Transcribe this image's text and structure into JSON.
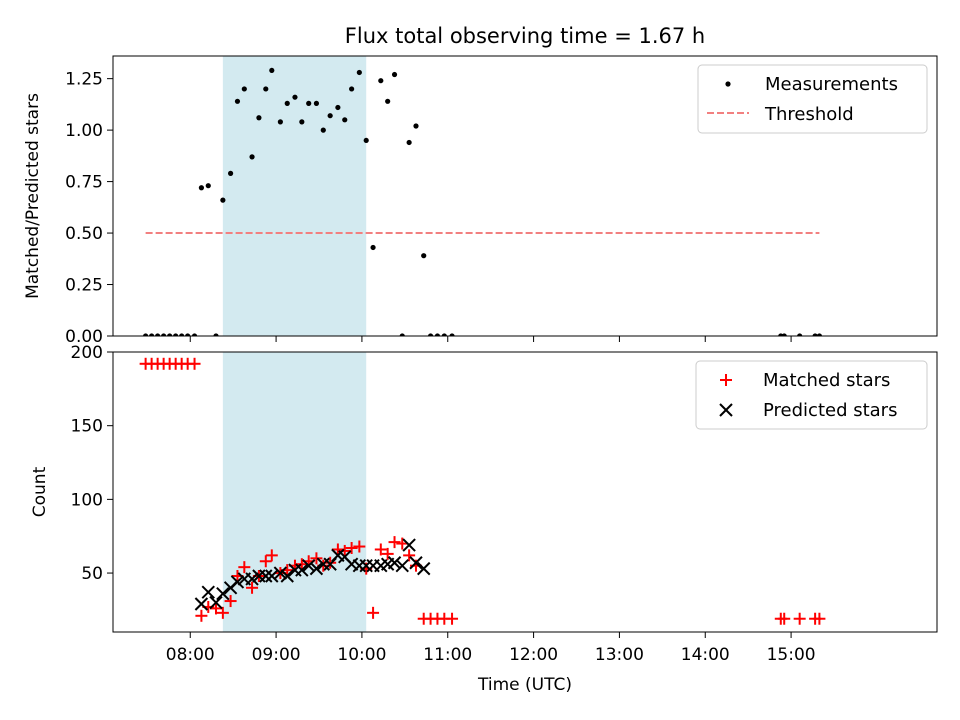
{
  "chart_data": [
    {
      "type": "scatter",
      "title": "Flux total observing time = 1.67 h",
      "xlabel": "",
      "ylabel": "Matched/Predicted stars",
      "x_unit": "hours (UTC)",
      "xlim": [
        7.1,
        16.7
      ],
      "ylim": [
        0,
        1.36
      ],
      "yticks": [
        0.0,
        0.25,
        0.5,
        0.75,
        1.0,
        1.25
      ],
      "ytick_labels": [
        "0.00",
        "0.25",
        "0.50",
        "0.75",
        "1.00",
        "1.25"
      ],
      "highlight_span": {
        "from": 8.38,
        "to": 10.05,
        "color": "#d3eaf0"
      },
      "legend": {
        "position": "top-right",
        "entries": [
          "Measurements",
          "Threshold"
        ]
      },
      "series": [
        {
          "name": "Measurements",
          "kind": "points",
          "color": "#000000",
          "x": [
            7.48,
            7.55,
            7.62,
            7.69,
            7.76,
            7.83,
            7.9,
            7.97,
            8.05,
            8.13,
            8.21,
            8.3,
            8.38,
            8.47,
            8.55,
            8.63,
            8.72,
            8.8,
            8.88,
            8.95,
            9.05,
            9.13,
            9.22,
            9.3,
            9.38,
            9.47,
            9.55,
            9.63,
            9.72,
            9.8,
            9.88,
            9.97,
            10.05,
            10.13,
            10.22,
            10.3,
            10.38,
            10.47,
            10.55,
            10.63,
            10.72,
            10.8,
            10.88,
            10.96,
            11.05,
            14.88,
            14.92,
            15.1,
            15.28,
            15.33
          ],
          "y": [
            0,
            0,
            0,
            0,
            0,
            0,
            0,
            0,
            0,
            0.72,
            0.73,
            0,
            0.66,
            0.79,
            1.14,
            1.2,
            0.87,
            1.06,
            1.2,
            1.29,
            1.04,
            1.13,
            1.16,
            1.04,
            1.13,
            1.13,
            1.0,
            1.07,
            1.11,
            1.05,
            1.2,
            1.28,
            0.95,
            0.43,
            1.24,
            1.14,
            1.27,
            0,
            0.94,
            1.02,
            0.39,
            0,
            0,
            0,
            0,
            0,
            0,
            0,
            0,
            0
          ]
        },
        {
          "name": "Threshold",
          "kind": "dashed-line",
          "color": "#f28080",
          "x": [
            7.48,
            15.33
          ],
          "y": [
            0.5,
            0.5
          ]
        }
      ]
    },
    {
      "type": "scatter",
      "title": "",
      "xlabel": "Time (UTC)",
      "ylabel": "Count",
      "x_unit": "hours (UTC)",
      "xlim": [
        7.1,
        16.7
      ],
      "ylim": [
        10,
        200
      ],
      "yticks": [
        50,
        100,
        150,
        200
      ],
      "ytick_labels": [
        "50",
        "100",
        "150",
        "200"
      ],
      "xticks": [
        8,
        9,
        10,
        11,
        12,
        13,
        14,
        15
      ],
      "xtick_labels": [
        "08:00",
        "09:00",
        "10:00",
        "11:00",
        "12:00",
        "13:00",
        "14:00",
        "15:00"
      ],
      "highlight_span": {
        "from": 8.38,
        "to": 10.05,
        "color": "#d3eaf0"
      },
      "legend": {
        "position": "top-right",
        "entries": [
          "Matched stars",
          "Predicted stars"
        ]
      },
      "series": [
        {
          "name": "Matched stars",
          "kind": "plus",
          "color": "#ff0000",
          "x": [
            7.48,
            7.55,
            7.62,
            7.69,
            7.76,
            7.83,
            7.9,
            7.97,
            8.05,
            8.13,
            8.21,
            8.3,
            8.38,
            8.47,
            8.55,
            8.63,
            8.72,
            8.8,
            8.88,
            8.95,
            9.05,
            9.13,
            9.22,
            9.3,
            9.38,
            9.47,
            9.55,
            9.63,
            9.72,
            9.8,
            9.88,
            9.97,
            10.05,
            10.13,
            10.22,
            10.3,
            10.38,
            10.47,
            10.55,
            10.63,
            10.72,
            10.8,
            10.88,
            10.96,
            11.05,
            14.88,
            14.92,
            15.1,
            15.28,
            15.33
          ],
          "y": [
            192,
            192,
            192,
            192,
            192,
            192,
            192,
            192,
            192,
            21,
            27,
            26,
            23,
            31,
            48,
            54,
            40,
            48,
            58,
            62,
            50,
            52,
            55,
            56,
            58,
            60,
            55,
            57,
            66,
            65,
            67,
            68,
            53,
            23,
            66,
            63,
            71,
            70,
            62,
            55,
            19,
            19,
            19,
            19,
            19,
            19,
            19,
            19,
            19,
            19
          ]
        },
        {
          "name": "Predicted stars",
          "kind": "cross",
          "color": "#000000",
          "x": [
            8.13,
            8.21,
            8.3,
            8.38,
            8.47,
            8.55,
            8.63,
            8.72,
            8.8,
            8.88,
            8.95,
            9.05,
            9.13,
            9.22,
            9.3,
            9.38,
            9.47,
            9.55,
            9.63,
            9.72,
            9.8,
            9.88,
            9.97,
            10.05,
            10.13,
            10.22,
            10.3,
            10.38,
            10.47,
            10.55,
            10.63,
            10.72
          ],
          "y": [
            29,
            37,
            30,
            36,
            40,
            44,
            46,
            46,
            48,
            48,
            48,
            50,
            48,
            52,
            52,
            55,
            53,
            56,
            56,
            62,
            61,
            56,
            55,
            55,
            55,
            55,
            56,
            57,
            55,
            69,
            57,
            53
          ]
        }
      ]
    }
  ]
}
